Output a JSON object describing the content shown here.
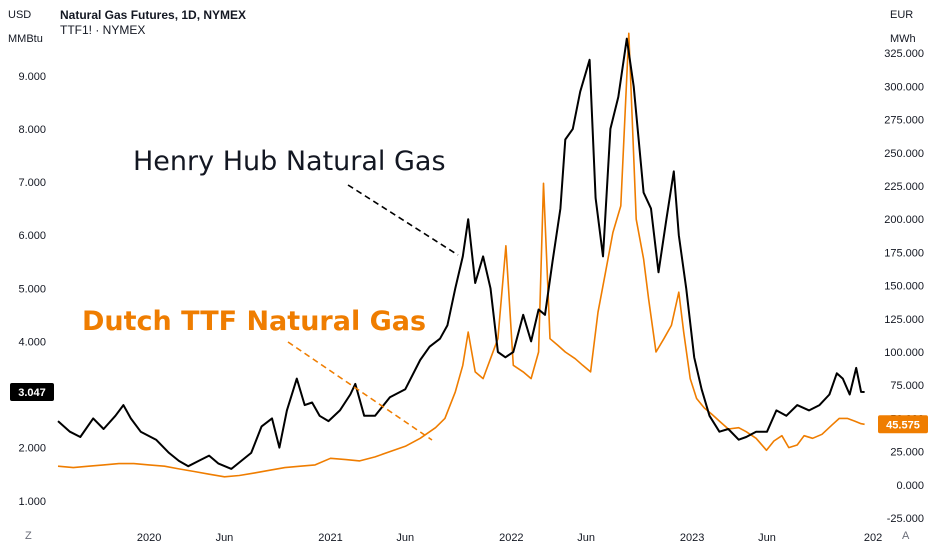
{
  "header": {
    "title": "Natural Gas Futures, 1D, NYMEX",
    "subtitle": "TTF1! · NYMEX"
  },
  "left_axis": {
    "currency": "USD",
    "unit": "MMBtu"
  },
  "right_axis": {
    "currency": "EUR",
    "unit": "MWh"
  },
  "corner_left": "Z",
  "corner_right": "A",
  "chart_data": {
    "type": "line",
    "x_tick_labels": [
      "2020",
      "Jun",
      "2021",
      "Jun",
      "2022",
      "Jun",
      "2023",
      "Jun",
      "202"
    ],
    "x_tick_dates": [
      "2020-01-01",
      "2020-06-01",
      "2021-01-01",
      "2021-06-01",
      "2022-01-01",
      "2022-06-01",
      "2023-01-01",
      "2023-06-01",
      "2024-01-01"
    ],
    "x_range": [
      "2019-06-25",
      "2024-01-05"
    ],
    "left_axis_range": [
      0.6,
      10.05
    ],
    "left_ticks": [
      "1.000",
      "2.000",
      "3.000",
      "4.000",
      "5.000",
      "6.000",
      "7.000",
      "8.000",
      "9.000"
    ],
    "right_axis_range": [
      -28,
      350
    ],
    "right_ticks": [
      "-25.000",
      "0.000",
      "25.000",
      "50.000",
      "75.000",
      "100.000",
      "125.000",
      "150.000",
      "175.000",
      "200.000",
      "225.000",
      "250.000",
      "275.000",
      "300.000",
      "325.000"
    ],
    "series": [
      {
        "name": "Henry Hub Natural Gas",
        "axis": "left",
        "color": "#000000",
        "last_value": "3.047",
        "points": [
          [
            "2019-07-01",
            2.5
          ],
          [
            "2019-07-25",
            2.3
          ],
          [
            "2019-08-15",
            2.2
          ],
          [
            "2019-09-10",
            2.55
          ],
          [
            "2019-10-01",
            2.35
          ],
          [
            "2019-10-25",
            2.6
          ],
          [
            "2019-11-10",
            2.8
          ],
          [
            "2019-11-25",
            2.55
          ],
          [
            "2019-12-15",
            2.3
          ],
          [
            "2020-01-15",
            2.15
          ],
          [
            "2020-02-10",
            1.9
          ],
          [
            "2020-03-01",
            1.75
          ],
          [
            "2020-03-20",
            1.65
          ],
          [
            "2020-04-10",
            1.75
          ],
          [
            "2020-05-01",
            1.85
          ],
          [
            "2020-05-20",
            1.7
          ],
          [
            "2020-06-15",
            1.6
          ],
          [
            "2020-07-05",
            1.75
          ],
          [
            "2020-07-25",
            1.9
          ],
          [
            "2020-08-15",
            2.4
          ],
          [
            "2020-09-05",
            2.55
          ],
          [
            "2020-09-20",
            2.0
          ],
          [
            "2020-10-05",
            2.7
          ],
          [
            "2020-10-25",
            3.3
          ],
          [
            "2020-11-10",
            2.8
          ],
          [
            "2020-11-25",
            2.85
          ],
          [
            "2020-12-10",
            2.6
          ],
          [
            "2020-12-28",
            2.5
          ],
          [
            "2021-01-20",
            2.7
          ],
          [
            "2021-02-10",
            3.0
          ],
          [
            "2021-02-20",
            3.2
          ],
          [
            "2021-03-10",
            2.6
          ],
          [
            "2021-04-01",
            2.6
          ],
          [
            "2021-05-01",
            2.95
          ],
          [
            "2021-06-01",
            3.1
          ],
          [
            "2021-07-01",
            3.65
          ],
          [
            "2021-07-20",
            3.9
          ],
          [
            "2021-08-10",
            4.05
          ],
          [
            "2021-08-25",
            4.3
          ],
          [
            "2021-09-10",
            5.0
          ],
          [
            "2021-09-25",
            5.6
          ],
          [
            "2021-10-06",
            6.3
          ],
          [
            "2021-10-20",
            5.1
          ],
          [
            "2021-11-05",
            5.6
          ],
          [
            "2021-11-20",
            5.0
          ],
          [
            "2021-12-05",
            3.8
          ],
          [
            "2021-12-20",
            3.7
          ],
          [
            "2022-01-05",
            3.8
          ],
          [
            "2022-01-25",
            4.5
          ],
          [
            "2022-02-10",
            4.0
          ],
          [
            "2022-02-25",
            4.6
          ],
          [
            "2022-03-10",
            4.5
          ],
          [
            "2022-03-25",
            5.5
          ],
          [
            "2022-04-10",
            6.5
          ],
          [
            "2022-04-20",
            7.8
          ],
          [
            "2022-05-05",
            8.0
          ],
          [
            "2022-05-20",
            8.7
          ],
          [
            "2022-06-08",
            9.3
          ],
          [
            "2022-06-20",
            6.7
          ],
          [
            "2022-07-05",
            5.6
          ],
          [
            "2022-07-20",
            8.0
          ],
          [
            "2022-08-05",
            8.6
          ],
          [
            "2022-08-22",
            9.7
          ],
          [
            "2022-09-05",
            8.8
          ],
          [
            "2022-09-25",
            6.8
          ],
          [
            "2022-10-10",
            6.5
          ],
          [
            "2022-10-25",
            5.3
          ],
          [
            "2022-11-10",
            6.3
          ],
          [
            "2022-11-25",
            7.2
          ],
          [
            "2022-12-05",
            6.0
          ],
          [
            "2022-12-20",
            5.0
          ],
          [
            "2023-01-05",
            3.7
          ],
          [
            "2023-01-20",
            3.1
          ],
          [
            "2023-02-05",
            2.6
          ],
          [
            "2023-02-25",
            2.3
          ],
          [
            "2023-03-15",
            2.35
          ],
          [
            "2023-04-05",
            2.15
          ],
          [
            "2023-04-20",
            2.2
          ],
          [
            "2023-05-10",
            2.3
          ],
          [
            "2023-06-01",
            2.3
          ],
          [
            "2023-06-20",
            2.7
          ],
          [
            "2023-07-10",
            2.6
          ],
          [
            "2023-08-01",
            2.8
          ],
          [
            "2023-08-25",
            2.7
          ],
          [
            "2023-09-15",
            2.8
          ],
          [
            "2023-10-05",
            3.0
          ],
          [
            "2023-10-20",
            3.4
          ],
          [
            "2023-11-01",
            3.3
          ],
          [
            "2023-11-15",
            3.0
          ],
          [
            "2023-11-28",
            3.5
          ],
          [
            "2023-12-08",
            3.05
          ],
          [
            "2023-12-15",
            3.047
          ]
        ]
      },
      {
        "name": "Dutch TTF Natural Gas",
        "axis": "right",
        "color": "#ef7d00",
        "last_value": "45.575",
        "points": [
          [
            "2019-07-01",
            14
          ],
          [
            "2019-08-01",
            13
          ],
          [
            "2019-09-01",
            14
          ],
          [
            "2019-10-01",
            15
          ],
          [
            "2019-11-01",
            16
          ],
          [
            "2019-12-01",
            16
          ],
          [
            "2020-01-01",
            15
          ],
          [
            "2020-02-01",
            14
          ],
          [
            "2020-03-01",
            12
          ],
          [
            "2020-04-01",
            10
          ],
          [
            "2020-05-01",
            8
          ],
          [
            "2020-06-01",
            6
          ],
          [
            "2020-07-01",
            7
          ],
          [
            "2020-08-01",
            9
          ],
          [
            "2020-09-01",
            11
          ],
          [
            "2020-10-01",
            13
          ],
          [
            "2020-11-01",
            14
          ],
          [
            "2020-12-01",
            15
          ],
          [
            "2021-01-01",
            20
          ],
          [
            "2021-02-01",
            19
          ],
          [
            "2021-03-01",
            18
          ],
          [
            "2021-04-01",
            21
          ],
          [
            "2021-05-01",
            25
          ],
          [
            "2021-06-01",
            29
          ],
          [
            "2021-07-01",
            35
          ],
          [
            "2021-08-01",
            43
          ],
          [
            "2021-08-20",
            50
          ],
          [
            "2021-09-10",
            70
          ],
          [
            "2021-09-25",
            90
          ],
          [
            "2021-10-06",
            115
          ],
          [
            "2021-10-20",
            85
          ],
          [
            "2021-11-05",
            80
          ],
          [
            "2021-11-20",
            95
          ],
          [
            "2021-12-05",
            110
          ],
          [
            "2021-12-21",
            180
          ],
          [
            "2022-01-05",
            90
          ],
          [
            "2022-01-25",
            85
          ],
          [
            "2022-02-10",
            80
          ],
          [
            "2022-02-25",
            100
          ],
          [
            "2022-03-07",
            227
          ],
          [
            "2022-03-20",
            110
          ],
          [
            "2022-04-05",
            105
          ],
          [
            "2022-04-20",
            100
          ],
          [
            "2022-05-10",
            95
          ],
          [
            "2022-05-25",
            90
          ],
          [
            "2022-06-10",
            85
          ],
          [
            "2022-06-25",
            130
          ],
          [
            "2022-07-10",
            160
          ],
          [
            "2022-07-25",
            190
          ],
          [
            "2022-08-10",
            210
          ],
          [
            "2022-08-26",
            340
          ],
          [
            "2022-09-10",
            200
          ],
          [
            "2022-09-25",
            170
          ],
          [
            "2022-10-05",
            140
          ],
          [
            "2022-10-20",
            100
          ],
          [
            "2022-11-05",
            110
          ],
          [
            "2022-11-20",
            120
          ],
          [
            "2022-12-05",
            145
          ],
          [
            "2022-12-15",
            115
          ],
          [
            "2022-12-28",
            80
          ],
          [
            "2023-01-10",
            65
          ],
          [
            "2023-01-25",
            58
          ],
          [
            "2023-02-10",
            53
          ],
          [
            "2023-02-25",
            48
          ],
          [
            "2023-03-15",
            42
          ],
          [
            "2023-04-05",
            43
          ],
          [
            "2023-04-20",
            40
          ],
          [
            "2023-05-10",
            35
          ],
          [
            "2023-05-31",
            26
          ],
          [
            "2023-06-15",
            33
          ],
          [
            "2023-07-01",
            37
          ],
          [
            "2023-07-15",
            28
          ],
          [
            "2023-08-01",
            30
          ],
          [
            "2023-08-15",
            37
          ],
          [
            "2023-09-01",
            35
          ],
          [
            "2023-09-20",
            38
          ],
          [
            "2023-10-10",
            45
          ],
          [
            "2023-10-25",
            50
          ],
          [
            "2023-11-10",
            50
          ],
          [
            "2023-11-25",
            48
          ],
          [
            "2023-12-08",
            46
          ],
          [
            "2023-12-15",
            45.575
          ]
        ]
      }
    ],
    "annotations": [
      {
        "text": "Henry Hub Natural Gas",
        "color": "#131722"
      },
      {
        "text": "Dutch TTF Natural Gas",
        "color": "#ef7d00"
      }
    ],
    "grid": false
  }
}
